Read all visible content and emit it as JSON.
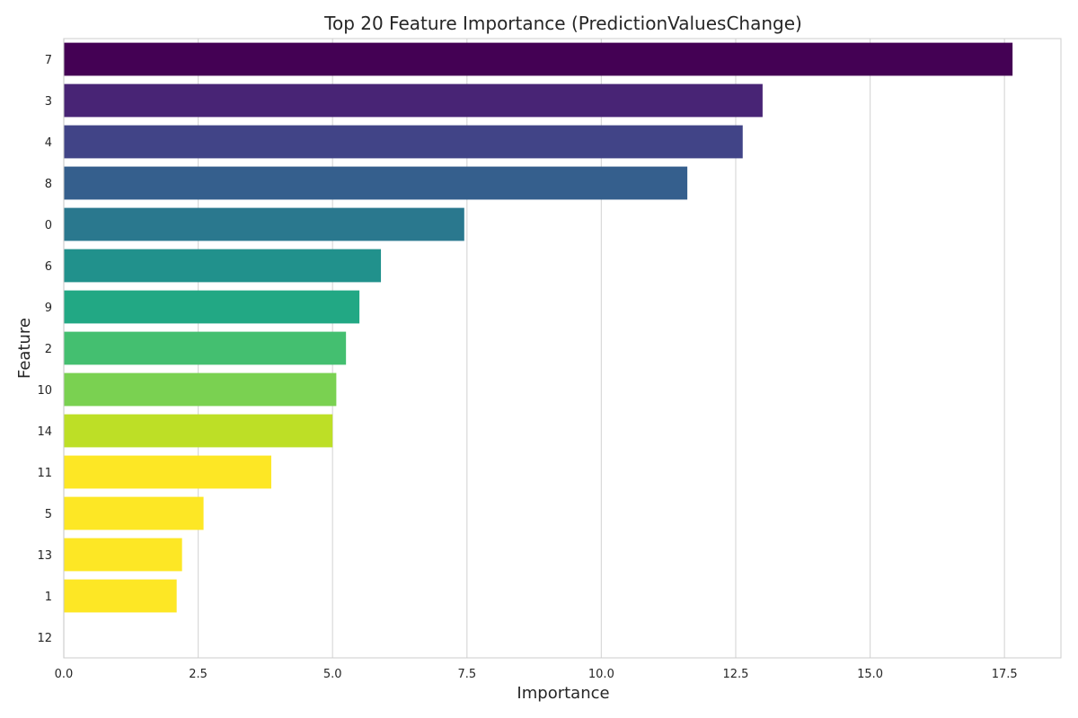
{
  "chart_data": {
    "type": "bar",
    "orientation": "horizontal",
    "title": "Top 20 Feature Importance (PredictionValuesChange)",
    "xlabel": "Importance",
    "ylabel": "Feature",
    "xlim": [
      0,
      18.55
    ],
    "xticks": [
      "0.0",
      "2.5",
      "5.0",
      "7.5",
      "10.0",
      "12.5",
      "15.0",
      "17.5"
    ],
    "grid": true,
    "categories": [
      "7",
      "3",
      "4",
      "8",
      "0",
      "6",
      "9",
      "2",
      "10",
      "14",
      "11",
      "5",
      "13",
      "1",
      "12"
    ],
    "values": [
      17.65,
      13.0,
      12.63,
      11.6,
      7.45,
      5.9,
      5.5,
      5.25,
      5.07,
      5.0,
      3.86,
      2.6,
      2.2,
      2.1,
      0.0
    ],
    "colors": [
      "#440154",
      "#482475",
      "#414487",
      "#355f8d",
      "#2a788e",
      "#21918c",
      "#22a884",
      "#44bf70",
      "#7ad151",
      "#bddf26",
      "#fde725",
      "#fde725",
      "#fde725",
      "#fde725",
      "#fde725"
    ],
    "palette": "viridis"
  }
}
